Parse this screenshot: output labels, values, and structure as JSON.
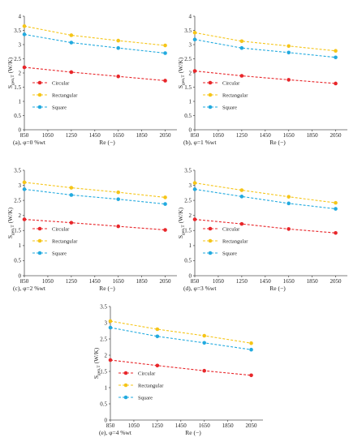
{
  "figure": {
    "colors": {
      "Circular": "#e8262a",
      "Rectangular": "#f5c518",
      "Square": "#22aadf"
    }
  },
  "chart_data": [
    {
      "type": "line",
      "caption": "(a), φ=0 %wt",
      "ylabel": "S_gen,T (W/K)",
      "xlabel": "Re (−)",
      "x": [
        850,
        1250,
        1650,
        2050
      ],
      "xlim": [
        850,
        2150
      ],
      "xticks": [
        "850",
        "1050",
        "1250",
        "1450",
        "1650",
        "1850",
        "2050"
      ],
      "ylim": [
        0,
        4
      ],
      "yticks": [
        "0",
        "0.5",
        "1",
        "1.5",
        "2",
        "2.5",
        "3",
        "3.5",
        "4"
      ],
      "legend": "lower-left",
      "series": [
        {
          "name": "Circular",
          "values": [
            2.2,
            2.03,
            1.88,
            1.73
          ]
        },
        {
          "name": "Rectangular",
          "values": [
            3.65,
            3.33,
            3.14,
            2.97
          ]
        },
        {
          "name": "Square",
          "values": [
            3.36,
            3.07,
            2.88,
            2.7
          ]
        }
      ]
    },
    {
      "type": "line",
      "caption": "(b), φ=1 %wt",
      "ylabel": "S_gen,T (W/K)",
      "xlabel": "Re (−)",
      "x": [
        850,
        1250,
        1650,
        2050
      ],
      "xlim": [
        850,
        2150
      ],
      "xticks": [
        "850",
        "1050",
        "1250",
        "1450",
        "1650",
        "1850",
        "2050"
      ],
      "ylim": [
        0,
        4
      ],
      "yticks": [
        "0",
        "0.5",
        "1",
        "1.5",
        "2",
        "2.5",
        "3",
        "3.5",
        "4"
      ],
      "legend": "lower-left",
      "series": [
        {
          "name": "Circular",
          "values": [
            2.07,
            1.9,
            1.76,
            1.63
          ]
        },
        {
          "name": "Rectangular",
          "values": [
            3.42,
            3.12,
            2.95,
            2.78
          ]
        },
        {
          "name": "Square",
          "values": [
            3.18,
            2.88,
            2.72,
            2.55
          ]
        }
      ]
    },
    {
      "type": "line",
      "caption": "(c), φ=2 %wt",
      "ylabel": "S_gen,T (W/K)",
      "xlabel": "Re (−)",
      "x": [
        850,
        1250,
        1650,
        2050
      ],
      "xlim": [
        850,
        2150
      ],
      "xticks": [
        "850",
        "1050",
        "1250",
        "1450",
        "1650",
        "1850",
        "2050"
      ],
      "ylim": [
        0,
        3.5
      ],
      "yticks": [
        "0",
        "0.5",
        "1",
        "1.5",
        "2",
        "2.5",
        "3",
        "3.5"
      ],
      "legend": "lower-left",
      "series": [
        {
          "name": "Circular",
          "values": [
            1.87,
            1.76,
            1.64,
            1.52
          ]
        },
        {
          "name": "Rectangular",
          "values": [
            3.1,
            2.92,
            2.77,
            2.6
          ]
        },
        {
          "name": "Square",
          "values": [
            2.87,
            2.68,
            2.54,
            2.38
          ]
        }
      ]
    },
    {
      "type": "line",
      "caption": "(d), φ=3 %wt",
      "ylabel": "S_gen,T (W/K)",
      "xlabel": "Re (−)",
      "x": [
        850,
        1250,
        1650,
        2050
      ],
      "xlim": [
        850,
        2150
      ],
      "xticks": [
        "850",
        "1050",
        "1250",
        "1450",
        "1650",
        "1850",
        "2050"
      ],
      "ylim": [
        0,
        3.5
      ],
      "yticks": [
        "0",
        "0.5",
        "1",
        "1.5",
        "2",
        "2.5",
        "3",
        "3.5"
      ],
      "legend": "lower-left",
      "series": [
        {
          "name": "Circular",
          "values": [
            1.87,
            1.72,
            1.55,
            1.42
          ]
        },
        {
          "name": "Rectangular",
          "values": [
            3.08,
            2.84,
            2.62,
            2.42
          ]
        },
        {
          "name": "Square",
          "values": [
            2.87,
            2.63,
            2.4,
            2.22
          ]
        }
      ]
    },
    {
      "type": "line",
      "caption": "(e), φ=4 %wt",
      "ylabel": "S_gen,T (W/K)",
      "xlabel": "Re (−)",
      "x": [
        850,
        1250,
        1650,
        2050
      ],
      "xlim": [
        850,
        2150
      ],
      "xticks": [
        "850",
        "1050",
        "1250",
        "1450",
        "1650",
        "1850",
        "2050"
      ],
      "ylim": [
        0,
        3.5
      ],
      "yticks": [
        "0",
        "0.5",
        "1",
        "1.5",
        "2",
        "2.5",
        "3",
        "3.5"
      ],
      "legend": "lower-left",
      "series": [
        {
          "name": "Circular",
          "values": [
            1.85,
            1.68,
            1.52,
            1.38
          ]
        },
        {
          "name": "Rectangular",
          "values": [
            3.05,
            2.8,
            2.6,
            2.37
          ]
        },
        {
          "name": "Square",
          "values": [
            2.85,
            2.58,
            2.38,
            2.17
          ]
        }
      ]
    }
  ]
}
